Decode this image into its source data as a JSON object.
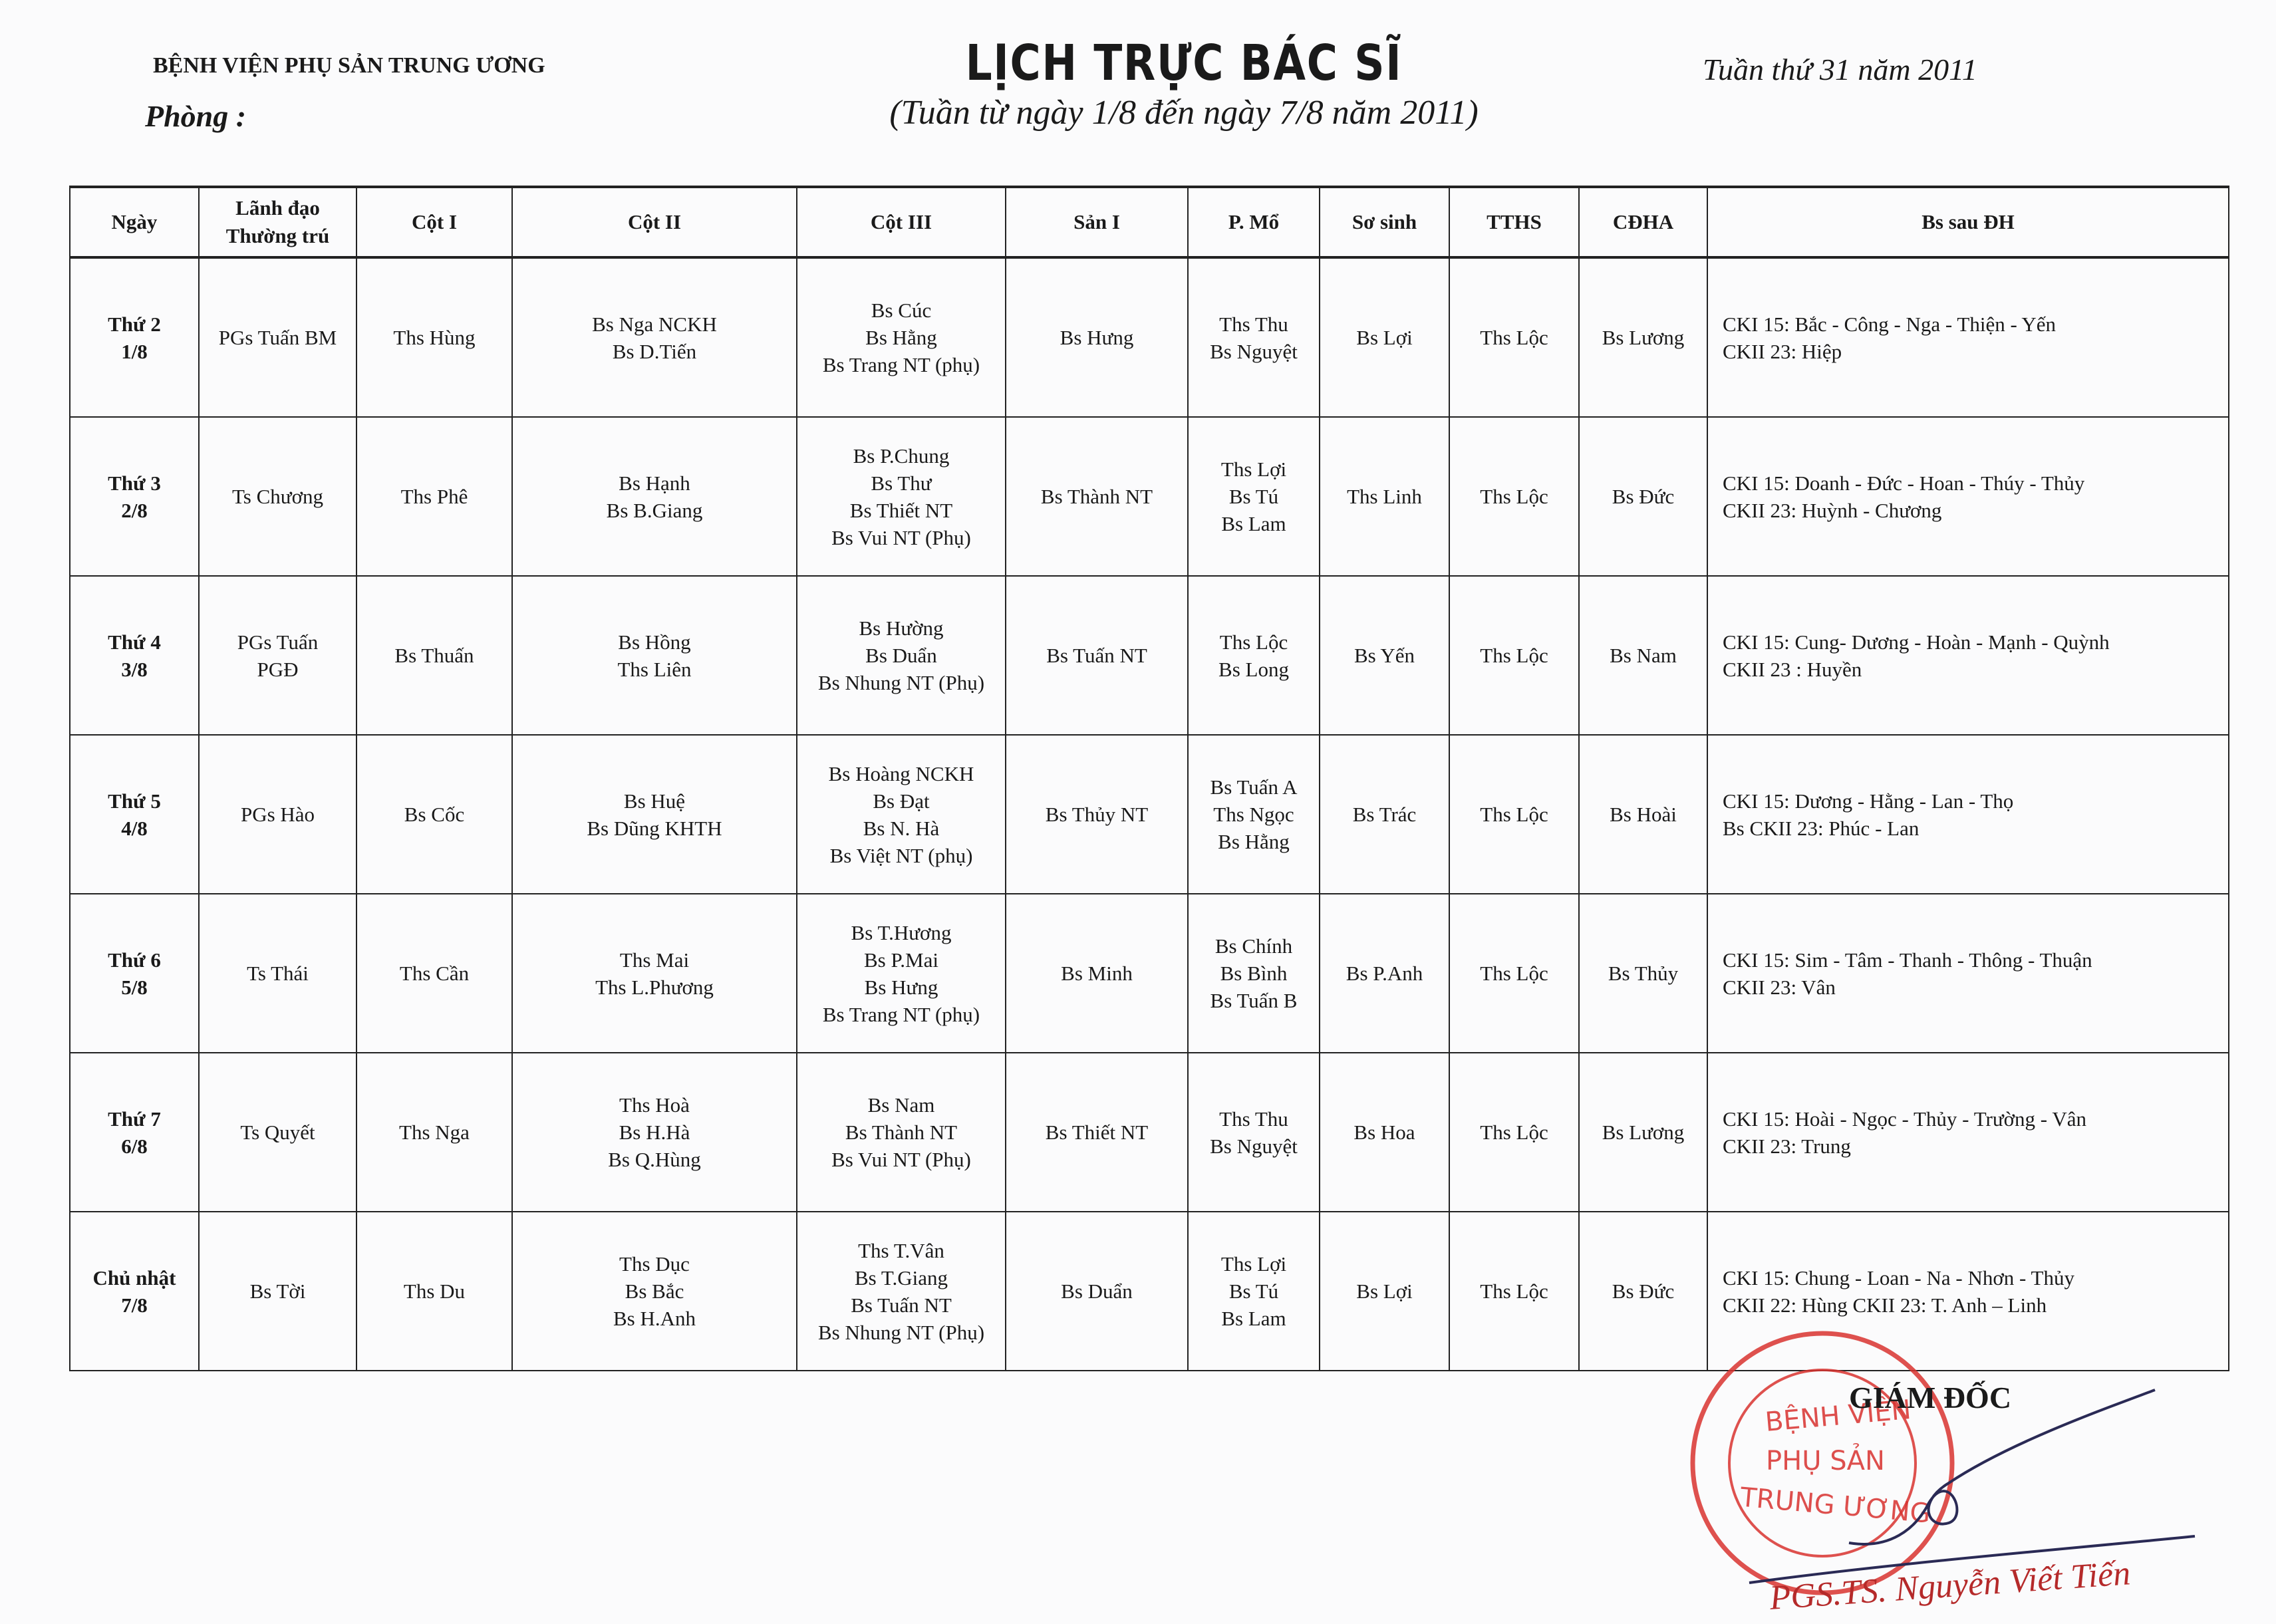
{
  "header": {
    "hospital": "BỆNH VIỆN PHỤ SẢN TRUNG ƯƠNG",
    "room_label": "Phòng :",
    "title": "LỊCH TRỰC BÁC SĨ",
    "subtitle": "(Tuần từ ngày 1/8 đến ngày 7/8 năm 2011)",
    "week": "Tuần thứ 31 năm 2011"
  },
  "table": {
    "columns": [
      [
        "Ngày"
      ],
      [
        "Lãnh đạo",
        "Thường trú"
      ],
      [
        "Cột I"
      ],
      [
        "Cột II"
      ],
      [
        "Cột III"
      ],
      [
        "Sản I"
      ],
      [
        "P. Mổ"
      ],
      [
        "Sơ sinh"
      ],
      [
        "TTHS"
      ],
      [
        "CĐHA"
      ],
      [
        "Bs sau ĐH"
      ]
    ],
    "rows": [
      [
        [
          "Thứ 2",
          "1/8"
        ],
        [
          "PGs Tuấn BM"
        ],
        [
          "Ths Hùng"
        ],
        [
          "Bs Nga NCKH",
          "Bs D.Tiến"
        ],
        [
          "Bs Cúc",
          "Bs Hằng",
          "Bs Trang NT (phụ)"
        ],
        [
          "Bs Hưng"
        ],
        [
          "Ths Thu",
          "Bs Nguyệt"
        ],
        [
          "Bs Lợi"
        ],
        [
          "Ths Lộc"
        ],
        [
          "Bs Lương"
        ],
        [
          "CKI 15: Bắc - Công - Nga - Thiện - Yến",
          "CKII 23: Hiệp"
        ]
      ],
      [
        [
          "Thứ 3",
          "2/8"
        ],
        [
          "Ts Chương"
        ],
        [
          "Ths Phê"
        ],
        [
          "Bs Hạnh",
          "Bs B.Giang"
        ],
        [
          "Bs P.Chung",
          "Bs Thư",
          "Bs Thiết NT",
          "Bs Vui NT (Phụ)"
        ],
        [
          "Bs Thành  NT"
        ],
        [
          "Ths Lợi",
          "Bs Tú",
          "Bs Lam"
        ],
        [
          "Ths Linh"
        ],
        [
          "Ths Lộc"
        ],
        [
          "Bs Đức"
        ],
        [
          "CKI 15: Doanh - Đức - Hoan - Thúy - Thủy",
          "CKII 23: Huỳnh - Chương"
        ]
      ],
      [
        [
          "Thứ 4",
          "3/8"
        ],
        [
          "PGs Tuấn",
          "PGĐ"
        ],
        [
          "Bs Thuấn"
        ],
        [
          "Bs Hồng",
          "Ths Liên"
        ],
        [
          "Bs Hường",
          "Bs Duẩn",
          "Bs Nhung NT (Phụ)"
        ],
        [
          "Bs Tuấn NT"
        ],
        [
          "Ths Lộc",
          "Bs Long"
        ],
        [
          "Bs Yến"
        ],
        [
          "Ths Lộc"
        ],
        [
          "Bs Nam"
        ],
        [
          "CKI 15: Cung- Dương - Hoàn - Mạnh - Quỳnh",
          "CKII 23 : Huyền"
        ]
      ],
      [
        [
          "Thứ 5",
          "4/8"
        ],
        [
          "PGs Hào"
        ],
        [
          "Bs Cốc"
        ],
        [
          "Bs Huệ",
          "Bs Dũng KHTH"
        ],
        [
          "Bs Hoàng NCKH",
          "Bs Đạt",
          "Bs N. Hà",
          "Bs Việt NT (phụ)"
        ],
        [
          "Bs Thủy NT"
        ],
        [
          "Bs Tuấn A",
          "Ths Ngọc",
          "Bs Hằng"
        ],
        [
          "Bs Trác"
        ],
        [
          "Ths Lộc"
        ],
        [
          "Bs Hoài"
        ],
        [
          "CKI 15: Dương - Hằng - Lan - Thọ",
          "Bs CKII 23: Phúc - Lan"
        ]
      ],
      [
        [
          "Thứ 6",
          "5/8"
        ],
        [
          "Ts Thái"
        ],
        [
          "Ths Cần"
        ],
        [
          "Ths Mai",
          "Ths L.Phương"
        ],
        [
          "Bs T.Hương",
          "Bs P.Mai",
          "Bs Hưng",
          "Bs Trang NT (phụ)"
        ],
        [
          "Bs Minh"
        ],
        [
          "Bs Chính",
          "Bs Bình",
          "Bs Tuấn B"
        ],
        [
          "Bs P.Anh"
        ],
        [
          "Ths Lộc"
        ],
        [
          "Bs Thủy"
        ],
        [
          "CKI 15: Sim - Tâm - Thanh - Thông - Thuận",
          "CKII 23: Vân"
        ]
      ],
      [
        [
          "Thứ 7",
          "6/8"
        ],
        [
          "Ts Quyết"
        ],
        [
          "Ths Nga"
        ],
        [
          "Ths Hoà",
          "Bs H.Hà",
          "Bs Q.Hùng"
        ],
        [
          "Bs Nam",
          "Bs Thành NT",
          "Bs Vui NT (Phụ)"
        ],
        [
          "Bs Thiết NT"
        ],
        [
          "Ths Thu",
          "Bs Nguyệt"
        ],
        [
          "Bs Hoa"
        ],
        [
          "Ths Lộc"
        ],
        [
          "Bs Lương"
        ],
        [
          "CKI 15: Hoài - Ngọc - Thủy - Trường - Vân",
          "CKII 23: Trung"
        ]
      ],
      [
        [
          "Chủ nhật",
          "7/8"
        ],
        [
          "Bs Tời"
        ],
        [
          "Ths Du"
        ],
        [
          "Ths Dục",
          "Bs Bắc",
          "Bs H.Anh"
        ],
        [
          "Ths T.Vân",
          "Bs T.Giang",
          "Bs Tuấn NT",
          "Bs Nhung NT (Phụ)"
        ],
        [
          "Bs Duẩn"
        ],
        [
          "Ths Lợi",
          "Bs Tú",
          "Bs Lam"
        ],
        [
          "Bs Lợi"
        ],
        [
          "Ths Lộc"
        ],
        [
          "Bs Đức"
        ],
        [
          "CKI 15: Chung - Loan - Na - Nhơn - Thủy",
          "CKII 22: Hùng   CKII 23: T. Anh – Linh"
        ]
      ]
    ]
  },
  "footer": {
    "director_title": "GIÁM ĐỐC",
    "signer": "PGS.TS. Nguyễn Viết Tiến",
    "stamp_text": "BỆNH VIỆN PHỤ SẢN TRUNG ƯƠNG",
    "stamp_color": "#d8322f"
  }
}
